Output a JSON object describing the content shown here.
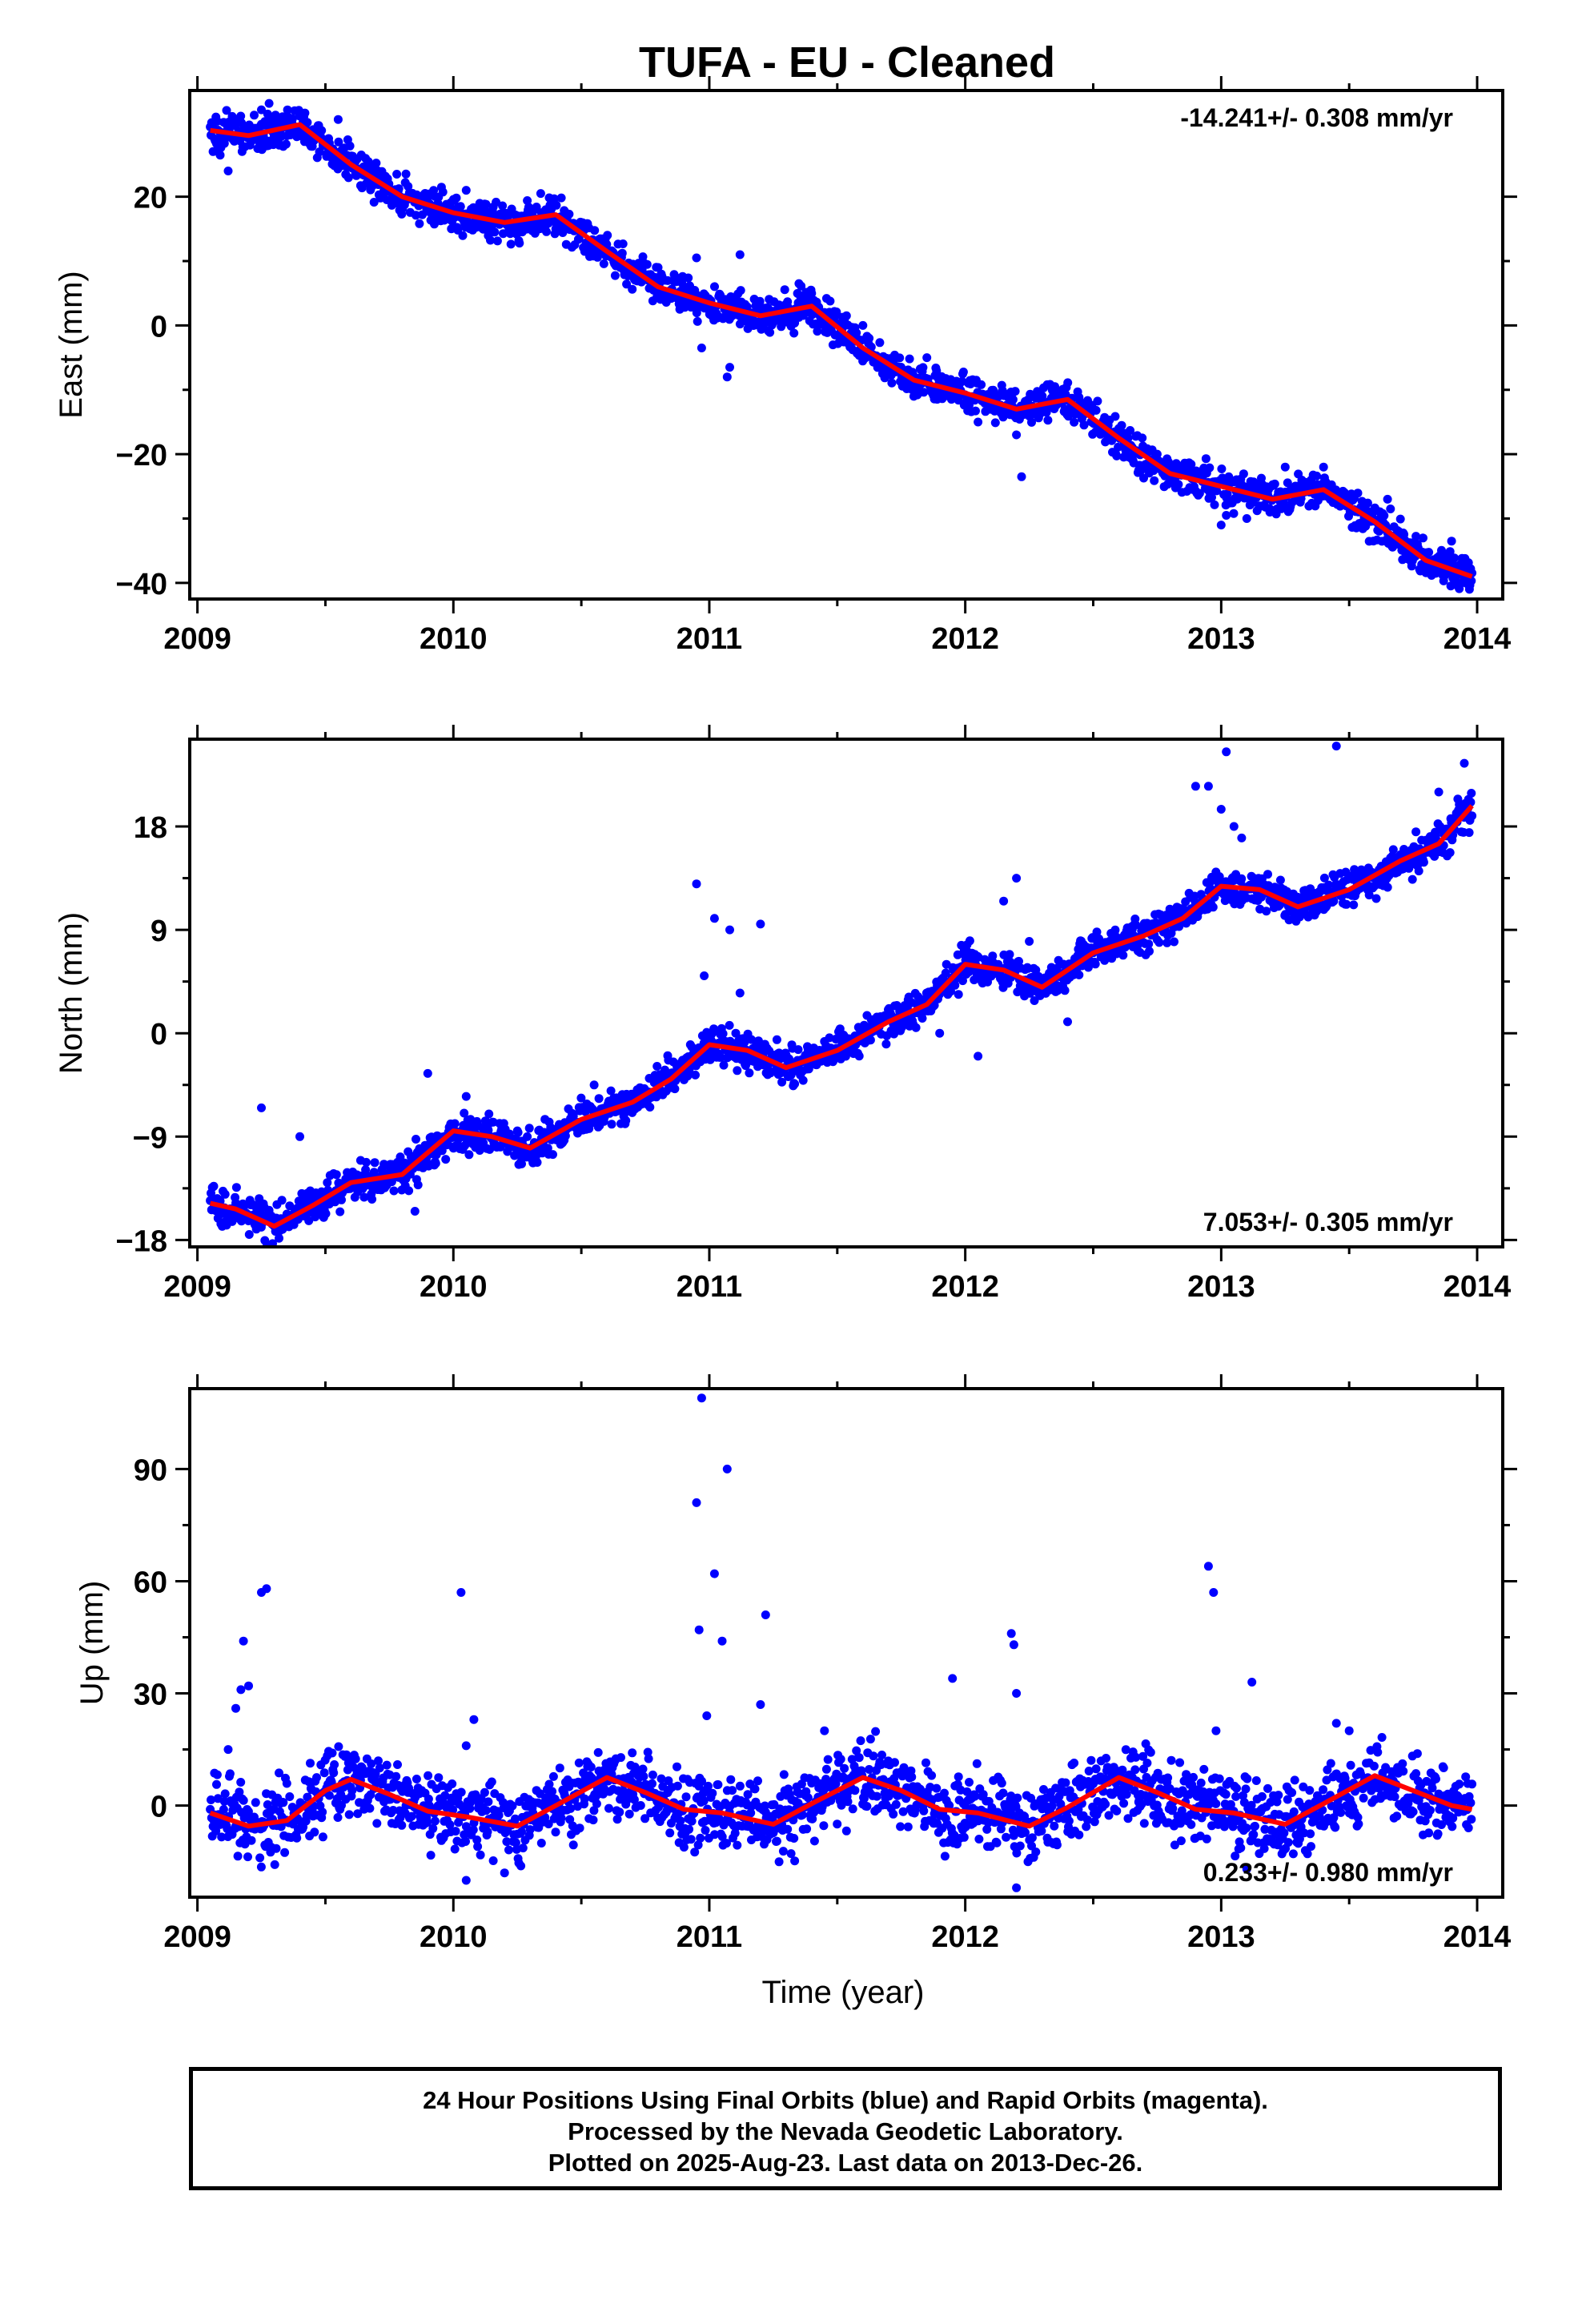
{
  "title": "TUFA  - EU - Cleaned",
  "footer": {
    "line1": "24 Hour Positions Using Final Orbits (blue) and Rapid Orbits (magenta).",
    "line2": "Processed by the Nevada Geodetic Laboratory.",
    "line3": "Plotted on 2025-Aug-23. Last data on 2013-Dec-26."
  },
  "colors": {
    "points": "#0000ff",
    "fit": "#ff0000",
    "axis": "#000000"
  },
  "chart_data": [
    {
      "type": "scatter",
      "title": "",
      "xlabel": "",
      "ylabel": "East (mm)",
      "xlim": [
        2008.97,
        2014.1
      ],
      "ylim": [
        -42.5,
        36.5
      ],
      "xticks": [
        2009,
        2010,
        2011,
        2012,
        2013,
        2014
      ],
      "yticks": [
        -40,
        -20,
        0,
        20
      ],
      "grid": false,
      "rate_label": "-14.241+/- 0.308 mm/yr",
      "rate_position": "top-right",
      "series": [
        {
          "style": "fit-line",
          "x": [
            2009.05,
            2009.2,
            2009.4,
            2009.6,
            2009.8,
            2010.0,
            2010.2,
            2010.4,
            2010.6,
            2010.8,
            2011.0,
            2011.2,
            2011.4,
            2011.6,
            2011.8,
            2012.0,
            2012.2,
            2012.4,
            2012.6,
            2012.8,
            2013.0,
            2013.2,
            2013.4,
            2013.6,
            2013.8,
            2013.98
          ],
          "y": [
            30.3,
            29.5,
            31.2,
            25.0,
            20.0,
            17.5,
            16.0,
            17.2,
            11.5,
            6.0,
            3.5,
            1.5,
            3.0,
            -3.5,
            -8.5,
            -10.5,
            -13.0,
            -11.5,
            -17.5,
            -23.0,
            -25.0,
            -27.0,
            -25.5,
            -30.5,
            -36.5,
            -39.0
          ]
        },
        {
          "style": "outliers",
          "x": [
            2009.08,
            2009.12,
            2009.15,
            2009.25,
            2009.28,
            2009.32,
            2009.42,
            2009.55,
            2010.05,
            2010.4,
            2010.8,
            2010.95,
            2010.97,
            2011.07,
            2011.08,
            2011.12,
            2011.35,
            2011.6,
            2011.85,
            2012.05,
            2012.2,
            2012.22,
            2012.35,
            2012.55,
            2012.75,
            2013.0,
            2013.02,
            2013.1,
            2013.25,
            2013.4,
            2013.65,
            2013.9,
            2013.97
          ],
          "y": [
            27.0,
            24.0,
            32.0,
            33.5,
            34.5,
            28.0,
            33.0,
            32.0,
            21.0,
            15.0,
            9.0,
            10.5,
            -3.5,
            -8.0,
            -6.5,
            11.0,
            6.5,
            0.0,
            -5.0,
            -15.0,
            -17.0,
            -23.5,
            -9.5,
            -15.0,
            -20.0,
            -31.0,
            -29.5,
            -30.0,
            -22.0,
            -22.0,
            -27.0,
            -33.5,
            -41.0
          ]
        }
      ]
    },
    {
      "type": "scatter",
      "title": "",
      "xlabel": "",
      "ylabel": "North (mm)",
      "xlim": [
        2008.97,
        2014.1
      ],
      "ylim": [
        -18.6,
        25.6
      ],
      "xticks": [
        2009,
        2010,
        2011,
        2012,
        2013,
        2014
      ],
      "yticks": [
        -18,
        -9,
        0,
        9,
        18
      ],
      "grid": false,
      "rate_label": "7.053+/- 0.305 mm/yr",
      "rate_position": "bottom-right",
      "series": [
        {
          "style": "fit-line",
          "x": [
            2009.05,
            2009.15,
            2009.3,
            2009.45,
            2009.6,
            2009.8,
            2010.0,
            2010.15,
            2010.3,
            2010.5,
            2010.7,
            2010.85,
            2011.0,
            2011.15,
            2011.3,
            2011.5,
            2011.7,
            2011.85,
            2012.0,
            2012.15,
            2012.3,
            2012.5,
            2012.7,
            2012.85,
            2013.0,
            2013.15,
            2013.3,
            2013.5,
            2013.7,
            2013.85,
            2013.98
          ],
          "y": [
            -14.8,
            -15.3,
            -16.8,
            -15.0,
            -13.0,
            -12.3,
            -8.5,
            -9.0,
            -10.0,
            -7.5,
            -6.0,
            -4.0,
            -1.0,
            -1.5,
            -3.0,
            -1.5,
            1.0,
            2.5,
            6.0,
            5.5,
            4.0,
            7.0,
            8.5,
            10.0,
            12.8,
            12.5,
            11.0,
            12.5,
            15.0,
            16.5,
            19.8
          ]
        },
        {
          "style": "outliers",
          "x": [
            2009.25,
            2009.9,
            2010.05,
            2010.25,
            2010.55,
            2010.95,
            2010.98,
            2011.02,
            2011.08,
            2011.12,
            2011.2,
            2011.55,
            2011.9,
            2012.05,
            2012.15,
            2012.2,
            2012.25,
            2012.4,
            2012.9,
            2012.95,
            2013.0,
            2013.02,
            2013.05,
            2013.08,
            2013.45,
            2013.85,
            2013.95,
            2009.4,
            2009.85
          ],
          "y": [
            -6.5,
            -3.5,
            -5.5,
            -8.5,
            -4.5,
            13.0,
            5.0,
            10.0,
            9.0,
            3.5,
            9.5,
            -1.0,
            0.0,
            -2.0,
            11.5,
            13.5,
            8.0,
            1.0,
            21.5,
            21.5,
            19.5,
            24.5,
            18.0,
            17.0,
            25.0,
            21.0,
            23.5,
            -9.0,
            -15.5
          ]
        }
      ]
    },
    {
      "type": "scatter",
      "title": "",
      "xlabel": "Time (year)",
      "ylabel": "Up (mm)",
      "xlim": [
        2008.97,
        2014.1
      ],
      "ylim": [
        -24.5,
        111.5
      ],
      "xticks": [
        2009,
        2010,
        2011,
        2012,
        2013,
        2014
      ],
      "yticks": [
        0,
        30,
        60,
        90
      ],
      "grid": false,
      "rate_label": "0.233+/- 0.980 mm/yr",
      "rate_position": "bottom-right",
      "series": [
        {
          "style": "fit-line",
          "x": [
            2009.05,
            2009.2,
            2009.35,
            2009.5,
            2009.6,
            2009.75,
            2009.9,
            2010.05,
            2010.25,
            2010.4,
            2010.6,
            2010.75,
            2010.9,
            2011.05,
            2011.25,
            2011.4,
            2011.6,
            2011.75,
            2011.9,
            2012.05,
            2012.25,
            2012.4,
            2012.6,
            2012.75,
            2012.9,
            2013.05,
            2013.25,
            2013.4,
            2013.6,
            2013.75,
            2013.9,
            2013.98
          ],
          "y": [
            -2.0,
            -5.5,
            -4.0,
            4.0,
            7.0,
            3.0,
            -1.5,
            -3.0,
            -5.5,
            0.0,
            7.5,
            3.5,
            -1.0,
            -2.0,
            -5.0,
            0.5,
            7.5,
            4.0,
            -1.0,
            -2.0,
            -5.5,
            -0.5,
            7.5,
            3.5,
            -1.0,
            -2.0,
            -5.0,
            0.5,
            8.0,
            4.0,
            0.0,
            -1.0
          ]
        },
        {
          "style": "outliers",
          "x": [
            2009.15,
            2009.17,
            2009.18,
            2009.2,
            2009.25,
            2009.27,
            2009.12,
            2010.03,
            2010.08,
            2010.05,
            2010.95,
            2010.96,
            2010.97,
            2010.99,
            2011.02,
            2011.05,
            2011.07,
            2011.2,
            2011.22,
            2011.45,
            2011.95,
            2012.18,
            2012.19,
            2012.2,
            2012.95,
            2012.97,
            2012.98,
            2013.12,
            2013.45,
            2013.5,
            2010.05,
            2010.2,
            2012.2,
            2013.1
          ],
          "y": [
            26.0,
            31.0,
            44.0,
            32.0,
            57.0,
            58.0,
            15.0,
            57.0,
            23.0,
            16.0,
            81.0,
            47.0,
            109.0,
            24.0,
            62.0,
            44.0,
            90.0,
            27.0,
            51.0,
            20.0,
            34.0,
            46.0,
            43.0,
            30.0,
            64.0,
            57.0,
            20.0,
            33.0,
            22.0,
            20.0,
            -20.0,
            -18.0,
            -22.0,
            -17.0
          ]
        }
      ]
    }
  ]
}
